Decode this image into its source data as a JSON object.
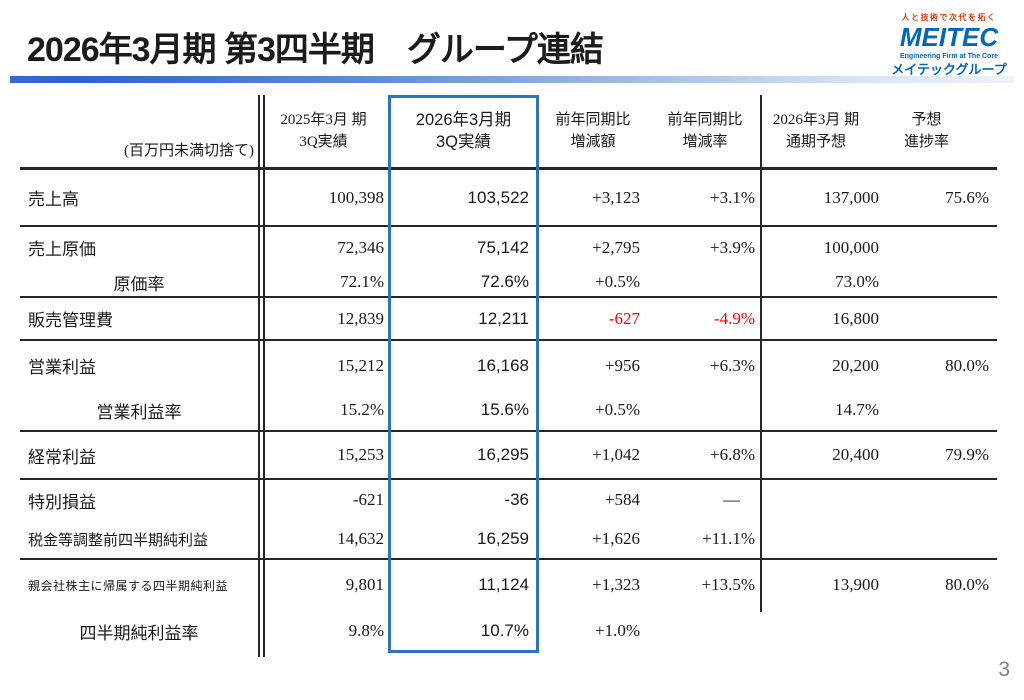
{
  "title": "2026年3月期 第3四半期　グループ連結",
  "logo": {
    "tagline": "人と技術で次代を拓く",
    "brand": "MEITEC",
    "subtitle": "Engineering Firm at The Core",
    "group": "メイテックグループ"
  },
  "page_number": "3",
  "colors": {
    "accent_blue": "#2E75B6",
    "negative_red": "#FF0000",
    "brand_blue": "#0068B7",
    "brand_red": "#E8380D",
    "line_dark": "#262626"
  },
  "table": {
    "unit_note": "(百万円未満切捨て)",
    "columns": [
      {
        "line1": "2025年3月 期",
        "line2": "3Q実績"
      },
      {
        "line1": "2026年3月期",
        "line2": "3Q実績"
      },
      {
        "line1": "前年同期比",
        "line2": "増減額"
      },
      {
        "line1": "前年同期比",
        "line2": "増減率"
      },
      {
        "line1": "2026年3月 期",
        "line2": "通期予想"
      },
      {
        "line1": "予想",
        "line2": "進捗率"
      }
    ],
    "rows": [
      {
        "label": "売上高",
        "values": [
          "100,398",
          "103,522",
          "+3,123",
          "+3.1%",
          "137,000",
          "75.6%"
        ]
      },
      {
        "label": "売上原価",
        "values": [
          "72,346",
          "75,142",
          "+2,795",
          "+3.9%",
          "100,000",
          ""
        ]
      },
      {
        "label": "原価率",
        "values": [
          "72.1%",
          "72.6%",
          "+0.5%",
          "",
          "73.0%",
          ""
        ]
      },
      {
        "label": "販売管理費",
        "values": [
          "12,839",
          "12,211",
          "-627",
          "-4.9%",
          "16,800",
          ""
        ]
      },
      {
        "label": "営業利益",
        "values": [
          "15,212",
          "16,168",
          "+956",
          "+6.3%",
          "20,200",
          "80.0%"
        ]
      },
      {
        "label": "営業利益率",
        "values": [
          "15.2%",
          "15.6%",
          "+0.5%",
          "",
          "14.7%",
          ""
        ]
      },
      {
        "label": "経常利益",
        "values": [
          "15,253",
          "16,295",
          "+1,042",
          "+6.8%",
          "20,400",
          "79.9%"
        ]
      },
      {
        "label": "特別損益",
        "values": [
          "-621",
          "-36",
          "+584",
          "—",
          "",
          ""
        ]
      },
      {
        "label": "税金等調整前四半期純利益",
        "values": [
          "14,632",
          "16,259",
          "+1,626",
          "+11.1%",
          "",
          ""
        ]
      },
      {
        "label": "親会社株主に帰属する四半期純利益",
        "values": [
          "9,801",
          "11,124",
          "+1,323",
          "+13.5%",
          "13,900",
          "80.0%"
        ]
      },
      {
        "label": "四半期純利益率",
        "values": [
          "9.8%",
          "10.7%",
          "+1.0%",
          "",
          "",
          ""
        ]
      }
    ]
  }
}
